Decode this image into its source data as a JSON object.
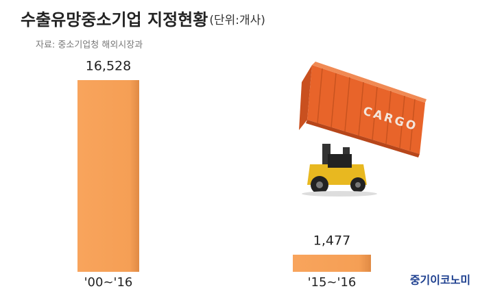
{
  "chart_data": {
    "type": "bar",
    "title": "수출유망중소기업 지정현황",
    "unit": "(단위:개사)",
    "subtitle": "자료: 중소기업청 해외시장과",
    "categories": [
      "'00~'16",
      "'15~'16"
    ],
    "values": [
      16528,
      1477
    ],
    "value_labels": [
      "16,528",
      "1,477"
    ],
    "color": "#f7a257"
  },
  "illustration_text": "CARGO",
  "brand": "중기이코노미"
}
